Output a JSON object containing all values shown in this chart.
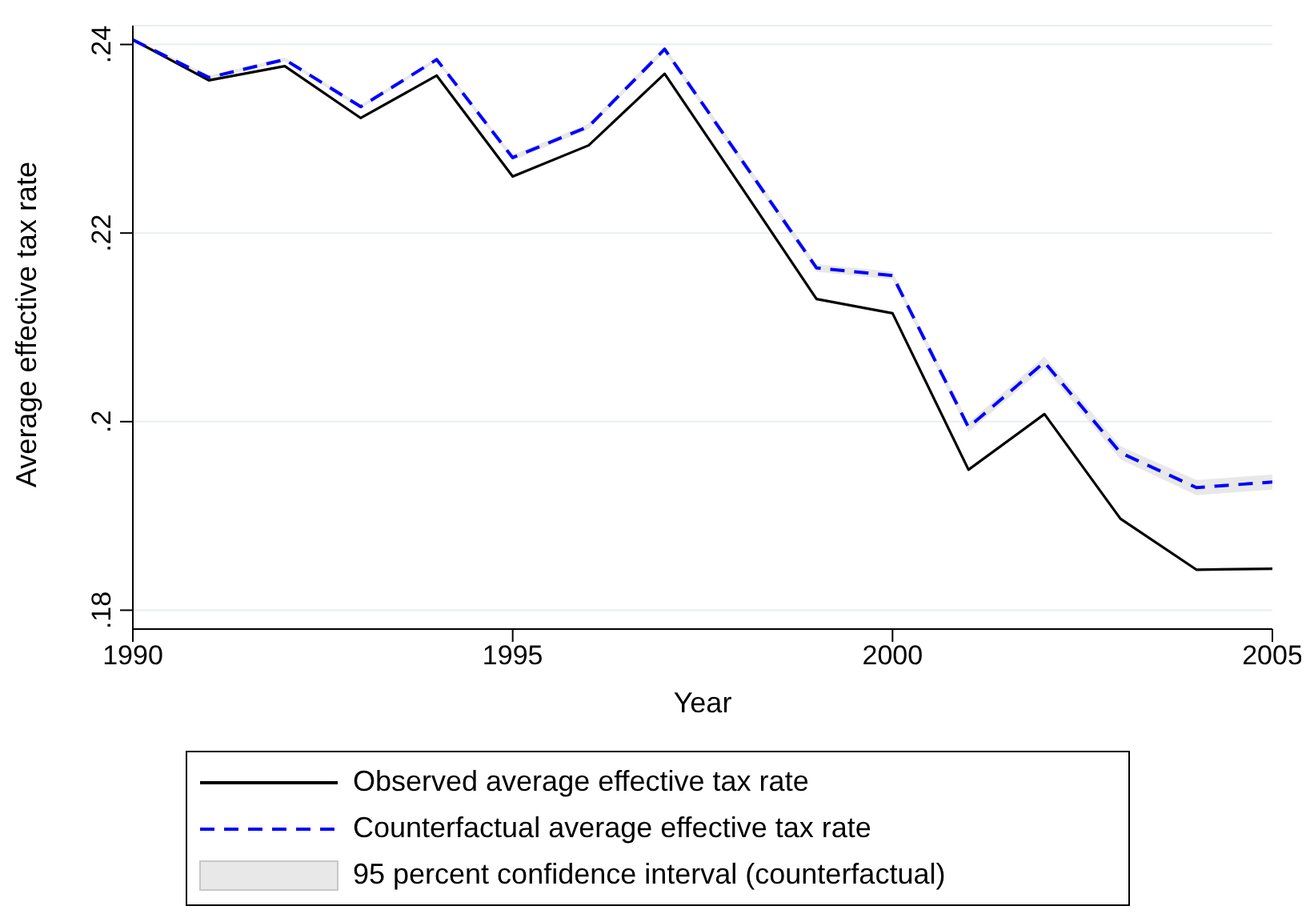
{
  "chart_data": {
    "type": "line",
    "xlabel": "Year",
    "ylabel": "Average effective tax rate",
    "x": [
      1990,
      1991,
      1992,
      1993,
      1994,
      1995,
      1996,
      1997,
      1998,
      1999,
      2000,
      2001,
      2002,
      2003,
      2004,
      2005
    ],
    "series": [
      {
        "name": "Observed average effective tax rate",
        "color": "#000000",
        "line_style": "solid",
        "values": [
          0.2405,
          0.2362,
          0.2377,
          0.2322,
          0.2367,
          0.226,
          0.2293,
          0.2369,
          0.225,
          0.213,
          0.2115,
          0.1949,
          0.2008,
          0.1897,
          0.1843,
          0.1844
        ]
      },
      {
        "name": "Counterfactual average effective tax rate",
        "color": "#0000ff",
        "line_style": "dashed",
        "values": [
          0.2405,
          0.2365,
          0.2384,
          0.2334,
          0.2384,
          0.228,
          0.2313,
          0.2395,
          0.2279,
          0.2163,
          0.2155,
          0.1994,
          0.2063,
          0.1967,
          0.193,
          0.1936
        ],
        "lower": [
          0.2403,
          0.2363,
          0.2382,
          0.2332,
          0.2382,
          0.2277,
          0.231,
          0.2392,
          0.2275,
          0.2159,
          0.2151,
          0.1989,
          0.2057,
          0.196,
          0.1922,
          0.1928
        ],
        "upper": [
          0.2407,
          0.2367,
          0.2386,
          0.2336,
          0.2386,
          0.2283,
          0.2316,
          0.2398,
          0.2283,
          0.2167,
          0.2159,
          0.1999,
          0.2069,
          0.1974,
          0.1938,
          0.1944
        ]
      }
    ],
    "annotations": [
      "95 percent confidence interval (counterfactual)"
    ],
    "xlim": [
      1990,
      2005
    ],
    "xticks": [
      1990,
      1995,
      2000,
      2005
    ],
    "ylim": [
      0.178,
      0.242
    ],
    "yticks": [
      {
        "value": 0.18,
        "label": ".18"
      },
      {
        "value": 0.2,
        "label": ".2"
      },
      {
        "value": 0.22,
        "label": ".22"
      },
      {
        "value": 0.24,
        "label": ".24"
      }
    ],
    "grid": "y",
    "legend": "bottom",
    "marker": "none"
  }
}
